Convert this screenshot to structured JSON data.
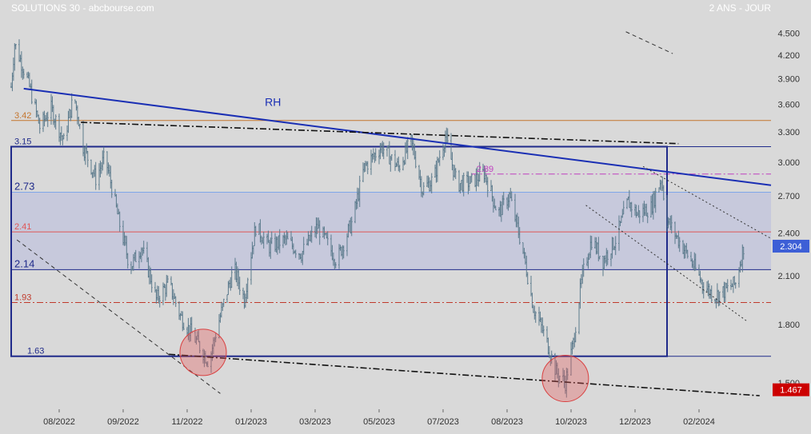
{
  "header": {
    "title": "SOLUTIONS 30 - abcbourse.com",
    "period": "2 ANS - JOUR"
  },
  "colors": {
    "background": "#d9d9d9",
    "candles": "#5b7a8c",
    "trendline": "#1a2fb4",
    "box": "#1f2a8a",
    "zone_fill": "#c3c5dc",
    "level_342": "#c4752e",
    "level_241": "#e05555",
    "level_193": "#c0392b",
    "level_289": "#c040c0",
    "last_badge": "#3d5fd6",
    "low_badge": "#cc0000",
    "circle": "#e55a5a"
  },
  "chart_data": {
    "type": "candlestick",
    "title": "SOLUTIONS 30 - abcbourse.com",
    "period": "2 ANS - JOUR",
    "x_range": [
      "2022-06-20",
      "2024-04-15"
    ],
    "x_ticks": [
      "08/2022",
      "09/2022",
      "11/2022",
      "01/2023",
      "03/2023",
      "05/2023",
      "07/2023",
      "08/2023",
      "10/2023",
      "12/2023",
      "02/2024"
    ],
    "y_axis": {
      "scale": "log",
      "range": [
        1.38,
        4.75
      ],
      "ticks": [
        "4.500",
        "4.200",
        "3.900",
        "3.600",
        "3.300",
        "3.000",
        "2.700",
        "2.400",
        "2.100",
        "1.800",
        "1.500"
      ]
    },
    "grid": false,
    "price_anchors": [
      [
        "2022-06-20",
        3.8
      ],
      [
        "2022-06-23",
        4.35
      ],
      [
        "2022-07-05",
        3.85
      ],
      [
        "2022-07-15",
        3.35
      ],
      [
        "2022-07-25",
        3.55
      ],
      [
        "2022-08-05",
        3.2
      ],
      [
        "2022-08-14",
        3.7
      ],
      [
        "2022-08-22",
        3.15
      ],
      [
        "2022-09-02",
        2.85
      ],
      [
        "2022-09-10",
        3.05
      ],
      [
        "2022-09-22",
        2.5
      ],
      [
        "2022-10-02",
        2.15
      ],
      [
        "2022-10-12",
        2.3
      ],
      [
        "2022-10-25",
        1.95
      ],
      [
        "2022-11-05",
        2.05
      ],
      [
        "2022-11-15",
        1.85
      ],
      [
        "2022-11-28",
        1.72
      ],
      [
        "2022-12-10",
        1.6
      ],
      [
        "2022-12-20",
        1.85
      ],
      [
        "2023-01-01",
        2.15
      ],
      [
        "2023-01-10",
        1.95
      ],
      [
        "2023-01-20",
        2.45
      ],
      [
        "2023-02-01",
        2.3
      ],
      [
        "2023-02-15",
        2.35
      ],
      [
        "2023-03-01",
        2.25
      ],
      [
        "2023-03-15",
        2.45
      ],
      [
        "2023-04-01",
        2.2
      ],
      [
        "2023-04-15",
        2.5
      ],
      [
        "2023-04-25",
        2.95
      ],
      [
        "2023-05-10",
        3.15
      ],
      [
        "2023-05-25",
        2.95
      ],
      [
        "2023-06-05",
        3.2
      ],
      [
        "2023-06-15",
        2.75
      ],
      [
        "2023-06-25",
        2.85
      ],
      [
        "2023-07-01",
        3.1
      ],
      [
        "2023-07-05",
        3.25
      ],
      [
        "2023-07-15",
        2.8
      ],
      [
        "2023-07-28",
        2.82
      ],
      [
        "2023-08-08",
        2.9
      ],
      [
        "2023-08-20",
        2.55
      ],
      [
        "2023-08-30",
        2.7
      ],
      [
        "2023-09-10",
        2.3
      ],
      [
        "2023-09-20",
        1.9
      ],
      [
        "2023-10-01",
        1.72
      ],
      [
        "2023-10-10",
        1.55
      ],
      [
        "2023-10-18",
        1.5
      ],
      [
        "2023-10-25",
        1.7
      ],
      [
        "2023-11-02",
        2.1
      ],
      [
        "2023-11-10",
        2.35
      ],
      [
        "2023-11-20",
        2.2
      ],
      [
        "2023-12-01",
        2.35
      ],
      [
        "2023-12-12",
        2.65
      ],
      [
        "2023-12-20",
        2.55
      ],
      [
        "2024-01-01",
        2.6
      ],
      [
        "2024-01-10",
        2.85
      ],
      [
        "2024-01-15",
        2.5
      ],
      [
        "2024-01-25",
        2.35
      ],
      [
        "2024-02-05",
        2.2
      ],
      [
        "2024-02-15",
        2.05
      ],
      [
        "2024-02-25",
        1.97
      ],
      [
        "2024-03-05",
        2.0
      ],
      [
        "2024-03-15",
        2.05
      ],
      [
        "2024-03-22",
        2.3
      ]
    ],
    "horizontal_levels": [
      {
        "value": 3.42,
        "label": "3.42",
        "color": "#c4752e",
        "style": "solid",
        "from": "2022-06-20"
      },
      {
        "value": 3.15,
        "label": "3.15",
        "color": "#1f2a8a",
        "style": "solid",
        "from": "2022-06-20"
      },
      {
        "value": 2.73,
        "label": "2.73",
        "color": "#7fa6e8",
        "style": "solid",
        "from": "2022-06-20"
      },
      {
        "value": 2.41,
        "label": "2.41",
        "color": "#e05555",
        "style": "solid",
        "from": "2022-06-20"
      },
      {
        "value": 2.14,
        "label": "2.14",
        "color": "#1f2a8a",
        "style": "solid",
        "from": "2022-06-20"
      },
      {
        "value": 1.93,
        "label": "1.93",
        "color": "#c0392b",
        "style": "dashdot",
        "from": "2022-06-20"
      },
      {
        "value": 1.63,
        "label": "1.63",
        "color": "#1f2a8a",
        "style": "solid",
        "from": "2022-06-20"
      },
      {
        "value": 2.89,
        "label": "2.89",
        "color": "#c040c0",
        "style": "dashdot",
        "from": "2023-07-28"
      }
    ],
    "zone": {
      "low": 2.14,
      "high": 2.73,
      "from": "2022-06-20",
      "to": "2024-04-15"
    },
    "box": {
      "low": 1.63,
      "high": 3.15,
      "from": "2022-06-20",
      "to": "2024-01-15"
    },
    "trendlines": [
      {
        "label": "RH",
        "style": "solid",
        "color": "#1a2fb4",
        "points": [
          [
            "2022-07-01",
            3.78
          ],
          [
            "2024-04-15",
            2.79
          ]
        ]
      },
      {
        "label": "",
        "style": "dashdot",
        "color": "#111111",
        "points": [
          [
            "2022-08-20",
            3.4
          ],
          [
            "2024-01-25",
            3.18
          ]
        ]
      },
      {
        "label": "",
        "style": "dashdot",
        "color": "#111111",
        "points": [
          [
            "2022-11-05",
            1.64
          ],
          [
            "2024-04-05",
            1.44
          ]
        ]
      },
      {
        "label": "",
        "style": "dashed",
        "color": "#333333",
        "points": [
          [
            "2022-06-25",
            2.35
          ],
          [
            "2022-12-20",
            1.45
          ]
        ]
      },
      {
        "label": "",
        "style": "dashed",
        "color": "#333333",
        "points": [
          [
            "2023-12-10",
            4.52
          ],
          [
            "2024-01-20",
            4.22
          ]
        ]
      },
      {
        "label": "",
        "style": "dotted",
        "color": "#333333",
        "points": [
          [
            "2023-11-05",
            2.62
          ],
          [
            "2024-03-25",
            1.82
          ]
        ]
      },
      {
        "label": "",
        "style": "dotted",
        "color": "#333333",
        "points": [
          [
            "2023-12-25",
            2.96
          ],
          [
            "2024-04-15",
            2.36
          ]
        ]
      }
    ],
    "circles": [
      {
        "center": [
          "2022-12-05",
          1.65
        ],
        "color": "#e55a5a"
      },
      {
        "center": [
          "2023-10-18",
          1.52
        ],
        "color": "#e55a5a"
      }
    ],
    "annotations": [
      {
        "text": "RH",
        "at": [
          "2023-01-28",
          3.58
        ]
      }
    ],
    "last_price": {
      "value": 2.304,
      "label": "2.304",
      "color": "#3d5fd6"
    },
    "low_price": {
      "value": 1.467,
      "label": "1.467",
      "color": "#cc0000"
    }
  }
}
